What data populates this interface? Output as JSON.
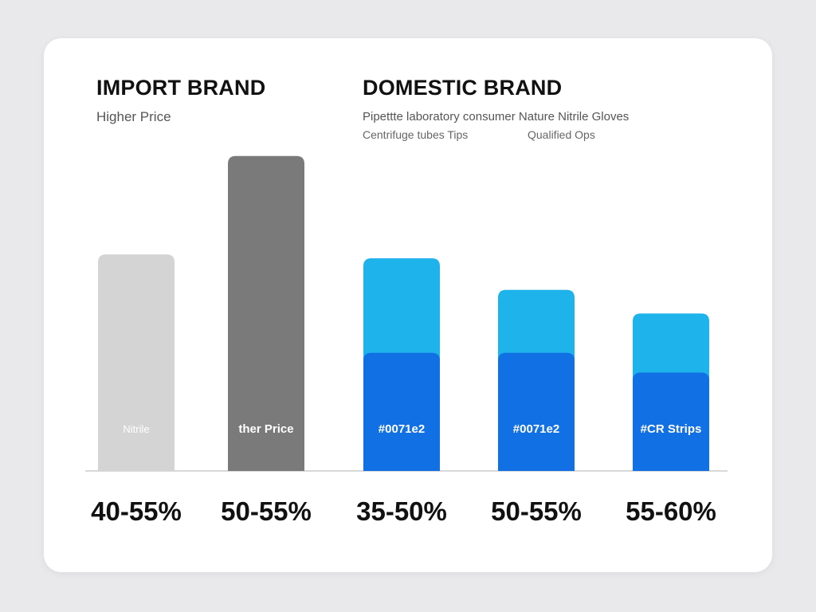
{
  "left_group": {
    "title": "IMPORT BRAND",
    "subtitle": "Higher  Price"
  },
  "right_group": {
    "title": "DOMESTIC BRAND",
    "subtitle_line1": "Pipettte  laboratory consumer  Nature  Nitrile Gloves",
    "subtitle_line2_a": "Centrifuge tubes Tips",
    "subtitle_line2_b": "Qualified Ops"
  },
  "chart_data": {
    "type": "bar",
    "categories": [
      "40-55%",
      "50-55%",
      "35-50%",
      "50-55%",
      "55-60%"
    ],
    "series": [
      {
        "values": [
          55,
          80,
          54,
          46,
          40
        ]
      },
      {
        "values": [
          0,
          0,
          30,
          30,
          25
        ]
      }
    ],
    "bar_labels": [
      "Nitrile",
      "ther Price",
      "#0071e2",
      "#0071e2",
      "#CR Strips"
    ],
    "ylim": [
      0,
      85
    ],
    "grid": false,
    "colors": {
      "import_light": "#d4d4d4",
      "import_dark": "#7a7a7a",
      "domestic_top": "#1fb3ec",
      "domestic_bottom": "#1170e3",
      "baseline": "#d9d9d9"
    }
  }
}
